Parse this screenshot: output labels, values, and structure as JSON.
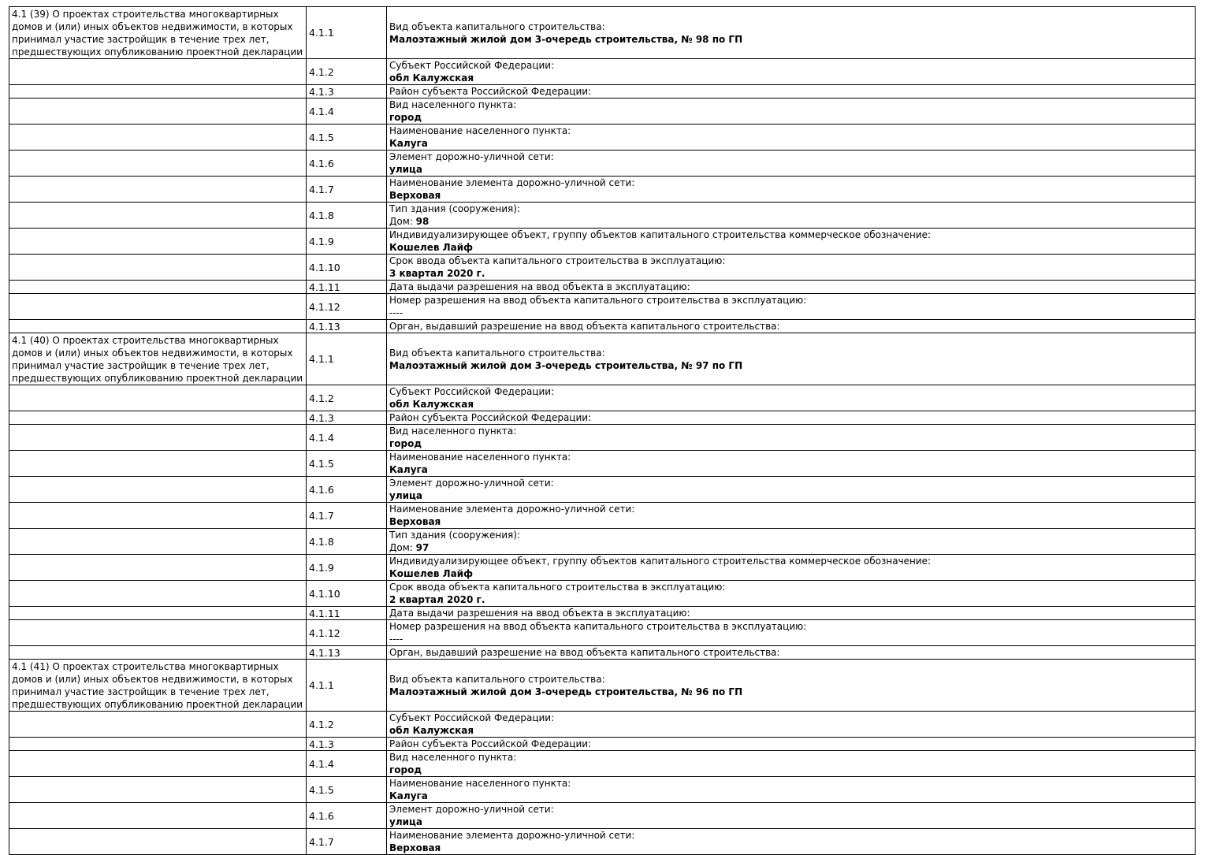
{
  "table": {
    "blocks": [
      {
        "section_title": "4.1 (39) О проектах строительства многоквартирных домов и (или) иных объектов недвижимости, в которых принимал участие застройщик в течение трех лет, предшествующих опубликованию проектной декларации",
        "rows": [
          {
            "code": "4.1.1",
            "label": "Вид объекта капитального строительства:",
            "value": "Малоэтажный жилой дом 3-очередь строительства, № 98 по ГП"
          },
          {
            "code": "4.1.2",
            "label": "Субъект Российской Федерации:",
            "value": "обл Калужская"
          },
          {
            "code": "4.1.3",
            "label": "Район субъекта Российской Федерации:",
            "value": ""
          },
          {
            "code": "4.1.4",
            "label": "Вид населенного пункта:",
            "value": "город"
          },
          {
            "code": "4.1.5",
            "label": "Наименование населенного пункта:",
            "value": "Калуга"
          },
          {
            "code": "4.1.6",
            "label": "Элемент дорожно-уличной сети:",
            "value": "улица"
          },
          {
            "code": "4.1.7",
            "label": "Наименование элемента дорожно-уличной сети:",
            "value": "Верховая"
          },
          {
            "code": "4.1.8",
            "label": "Тип здания (сооружения):",
            "value_prefix": "Дом: ",
            "value": "98"
          },
          {
            "code": "4.1.9",
            "label": "Индивидуализирующее объект, группу объектов капитального строительства коммерческое обозначение:",
            "value": "Кошелев Лайф"
          },
          {
            "code": "4.1.10",
            "label": "Срок ввода объекта капитального строительства в эксплуатацию:",
            "value": "3 квартал 2020 г."
          },
          {
            "code": "4.1.11",
            "label": "Дата выдачи разрешения на ввод объекта в эксплуатацию:",
            "value": ""
          },
          {
            "code": "4.1.12",
            "label": "Номер разрешения на ввод объекта капитального строительства в эксплуатацию:",
            "value": "----",
            "value_bold": false
          },
          {
            "code": "4.1.13",
            "label": "Орган, выдавший разрешение на ввод объекта капитального строительства:",
            "value": ""
          }
        ]
      },
      {
        "section_title": "4.1 (40) О проектах строительства многоквартирных домов и (или) иных объектов недвижимости, в которых принимал участие застройщик в течение трех лет, предшествующих опубликованию проектной декларации",
        "rows": [
          {
            "code": "4.1.1",
            "label": "Вид объекта капитального строительства:",
            "value": "Малоэтажный жилой дом 3-очередь строительства, № 97 по ГП"
          },
          {
            "code": "4.1.2",
            "label": "Субъект Российской Федерации:",
            "value": "обл Калужская"
          },
          {
            "code": "4.1.3",
            "label": "Район субъекта Российской Федерации:",
            "value": ""
          },
          {
            "code": "4.1.4",
            "label": "Вид населенного пункта:",
            "value": "город"
          },
          {
            "code": "4.1.5",
            "label": "Наименование населенного пункта:",
            "value": "Калуга"
          },
          {
            "code": "4.1.6",
            "label": "Элемент дорожно-уличной сети:",
            "value": "улица"
          },
          {
            "code": "4.1.7",
            "label": "Наименование элемента дорожно-уличной сети:",
            "value": "Верховая"
          },
          {
            "code": "4.1.8",
            "label": "Тип здания (сооружения):",
            "value_prefix": "Дом: ",
            "value": "97"
          },
          {
            "code": "4.1.9",
            "label": "Индивидуализирующее объект, группу объектов капитального строительства коммерческое обозначение:",
            "value": "Кошелев Лайф"
          },
          {
            "code": "4.1.10",
            "label": "Срок ввода объекта капитального строительства в эксплуатацию:",
            "value": "2 квартал 2020 г."
          },
          {
            "code": "4.1.11",
            "label": "Дата выдачи разрешения на ввод объекта в эксплуатацию:",
            "value": ""
          },
          {
            "code": "4.1.12",
            "label": "Номер разрешения на ввод объекта капитального строительства в эксплуатацию:",
            "value": "----",
            "value_bold": false
          },
          {
            "code": "4.1.13",
            "label": "Орган, выдавший разрешение на ввод объекта капитального строительства:",
            "value": ""
          }
        ]
      },
      {
        "section_title": "4.1 (41) О проектах строительства многоквартирных домов и (или) иных объектов недвижимости, в которых принимал участие застройщик в течение трех лет, предшествующих опубликованию проектной декларации",
        "rows": [
          {
            "code": "4.1.1",
            "label": "Вид объекта капитального строительства:",
            "value": "Малоэтажный жилой дом 3-очередь строительства, № 96 по ГП"
          },
          {
            "code": "4.1.2",
            "label": "Субъект Российской Федерации:",
            "value": "обл Калужская"
          },
          {
            "code": "4.1.3",
            "label": "Район субъекта Российской Федерации:",
            "value": ""
          },
          {
            "code": "4.1.4",
            "label": "Вид населенного пункта:",
            "value": "город"
          },
          {
            "code": "4.1.5",
            "label": "Наименование населенного пункта:",
            "value": "Калуга"
          },
          {
            "code": "4.1.6",
            "label": "Элемент дорожно-уличной сети:",
            "value": "улица"
          },
          {
            "code": "4.1.7",
            "label": "Наименование элемента дорожно-уличной сети:",
            "value": "Верховая"
          }
        ]
      }
    ]
  }
}
